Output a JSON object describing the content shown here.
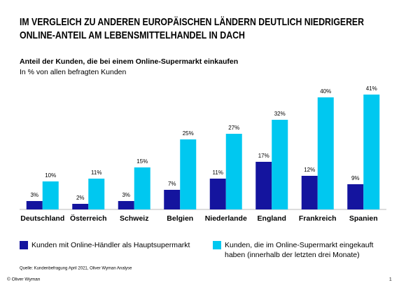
{
  "chart_data": {
    "type": "bar",
    "title": [
      "IM VERGLEICH ZU ANDEREN EUROPÄISCHEN LÄNDERN DEUTLICH NIEDRIGERER",
      "ONLINE-ANTEIL AM LEBENSMITTELHANDEL IN DACH"
    ],
    "subtitle": [
      "Anteil der Kunden, die bei einem Online-Supermarkt einkaufen",
      "In % von allen befragten Kunden"
    ],
    "categories": [
      "Deutschland",
      "Österreich",
      "Schweiz",
      "Belgien",
      "Niederlande",
      "England",
      "Frankreich",
      "Spanien"
    ],
    "series": [
      {
        "name": "Kunden mit Online-Händler als Hauptsupermarkt",
        "color": "#14149e",
        "values": [
          3,
          2,
          3,
          7,
          11,
          17,
          12,
          9
        ],
        "value_labels": [
          "3%",
          "2%",
          "3%",
          "7%",
          "11%",
          "17%",
          "12%",
          "9%"
        ]
      },
      {
        "name": "Kunden, die im Online-Supermarkt eingekauft haben (innerhalb der letzten drei Monate)",
        "color": "#00c8f0",
        "values": [
          10,
          11,
          15,
          25,
          27,
          32,
          40,
          41
        ],
        "value_labels": [
          "10%",
          "11%",
          "15%",
          "25%",
          "27%",
          "32%",
          "40%",
          "41%"
        ]
      }
    ],
    "source": "Quelle: Kundenbefragung April 2021, Oliver Wyman Analyse",
    "footer": "© Oliver Wyman",
    "page_number": "1"
  }
}
